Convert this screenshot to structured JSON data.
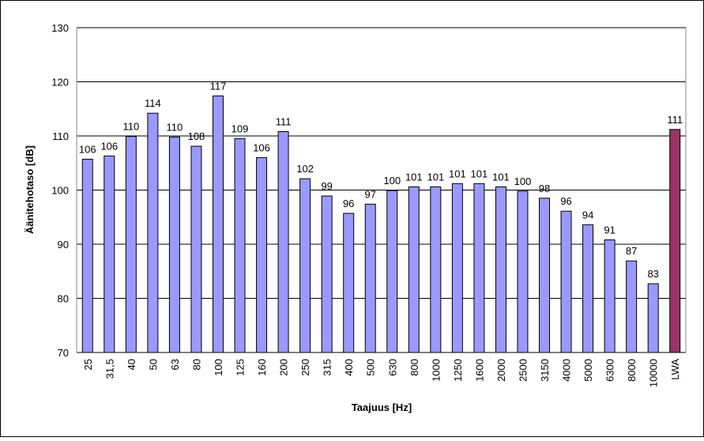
{
  "chart_data": {
    "type": "bar",
    "x_label": "Taajuus [Hz]",
    "y_label": "Äänitehotaso [dB]",
    "categories": [
      "25",
      "31,5",
      "40",
      "50",
      "63",
      "80",
      "100",
      "125",
      "160",
      "200",
      "250",
      "315",
      "400",
      "500",
      "630",
      "800",
      "1000",
      "1250",
      "1600",
      "2000",
      "2500",
      "3150",
      "4000",
      "5000",
      "6300",
      "8000",
      "10000",
      "LWA"
    ],
    "values": [
      105.7,
      106.3,
      109.9,
      114.2,
      109.8,
      108.1,
      117.4,
      109.5,
      106.0,
      110.8,
      102.1,
      98.9,
      95.7,
      97.4,
      99.9,
      100.6,
      100.6,
      101.2,
      101.2,
      100.6,
      99.8,
      98.5,
      96.1,
      93.6,
      90.8,
      86.9,
      82.7,
      111.2
    ],
    "value_labels": [
      "106",
      "106",
      "110",
      "114",
      "110",
      "108",
      "117",
      "109",
      "106",
      "111",
      "102",
      "99",
      "96",
      "97",
      "100",
      "101",
      "101",
      "101",
      "101",
      "101",
      "100",
      "98",
      "96",
      "94",
      "91",
      "87",
      "83",
      "111"
    ],
    "colors": [
      "#9999ff",
      "#9999ff",
      "#9999ff",
      "#9999ff",
      "#9999ff",
      "#9999ff",
      "#9999ff",
      "#9999ff",
      "#9999ff",
      "#9999ff",
      "#9999ff",
      "#9999ff",
      "#9999ff",
      "#9999ff",
      "#9999ff",
      "#9999ff",
      "#9999ff",
      "#9999ff",
      "#9999ff",
      "#9999ff",
      "#9999ff",
      "#9999ff",
      "#9999ff",
      "#9999ff",
      "#9999ff",
      "#9999ff",
      "#9999ff",
      "#993366"
    ],
    "ylim": [
      70,
      130
    ],
    "yticks": [
      70,
      80,
      90,
      100,
      110,
      120,
      130
    ],
    "grid": true
  }
}
